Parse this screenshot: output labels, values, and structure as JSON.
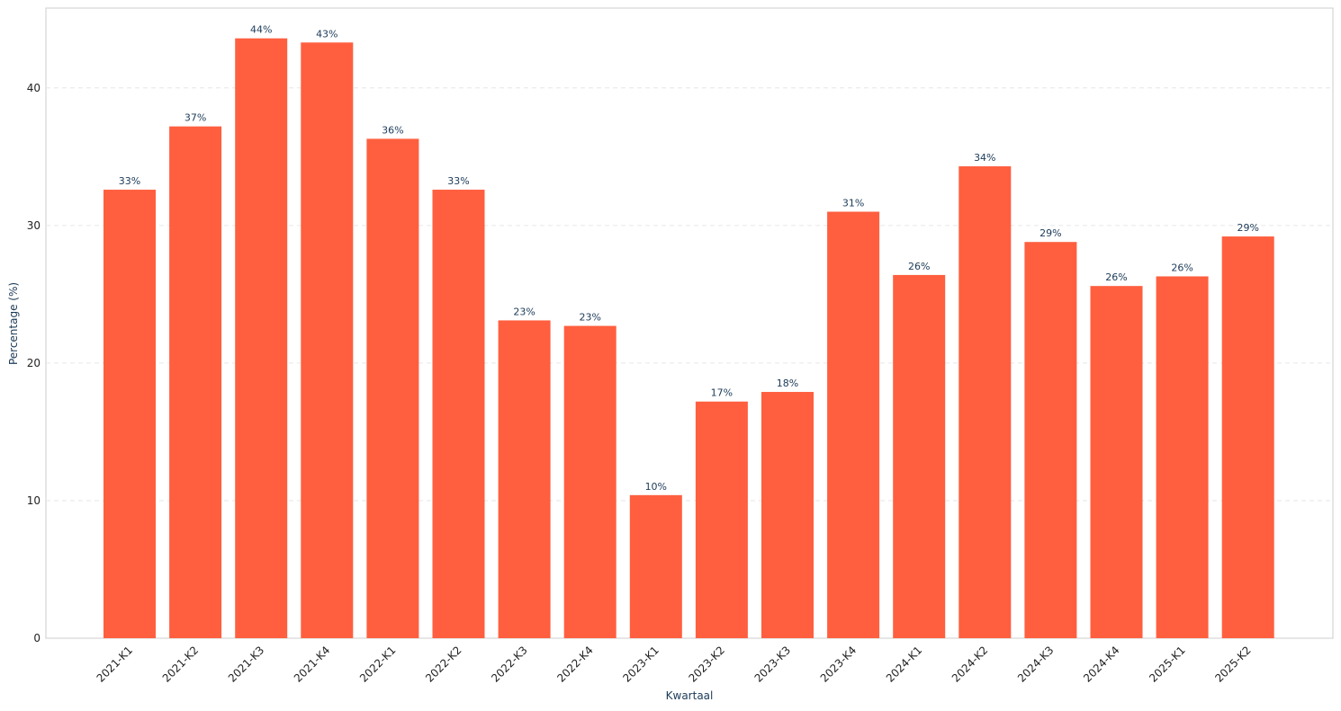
{
  "chart_data": {
    "type": "bar",
    "xlabel": "Kwartaal",
    "ylabel": "Percentage (%)",
    "ylim": [
      0,
      45.8
    ],
    "yticks": [
      0,
      10,
      20,
      30,
      40
    ],
    "grid": "horizontal dashed",
    "bar_color": "#ff5f3f",
    "label_color": "#1b3a57",
    "categories": [
      "2021-K1",
      "2021-K2",
      "2021-K3",
      "2021-K4",
      "2022-K1",
      "2022-K2",
      "2022-K3",
      "2022-K4",
      "2023-K1",
      "2023-K2",
      "2023-K3",
      "2023-K4",
      "2024-K1",
      "2024-K2",
      "2024-K3",
      "2024-K4",
      "2025-K1",
      "2025-K2"
    ],
    "values": [
      32.6,
      37.2,
      43.6,
      43.3,
      36.3,
      32.6,
      23.1,
      22.7,
      10.4,
      17.2,
      17.9,
      31.0,
      26.4,
      34.3,
      28.8,
      25.6,
      26.3,
      29.2
    ],
    "data_labels": [
      "33%",
      "37%",
      "44%",
      "43%",
      "36%",
      "33%",
      "23%",
      "23%",
      "10%",
      "17%",
      "18%",
      "31%",
      "26%",
      "34%",
      "29%",
      "26%",
      "26%",
      "29%"
    ]
  }
}
